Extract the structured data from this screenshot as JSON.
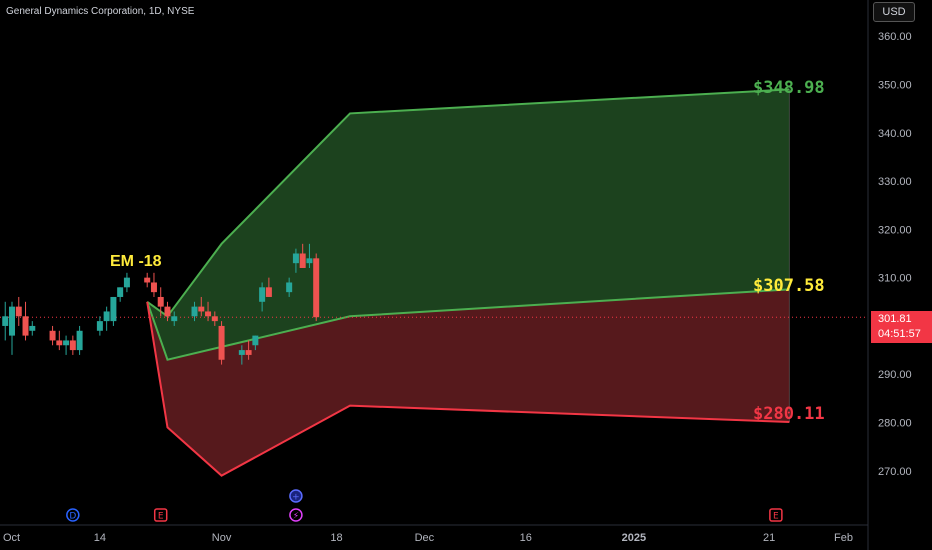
{
  "header": {
    "title": "General Dynamics Corporation, 1D, NYSE",
    "currency": "USD"
  },
  "last_price": {
    "value": "301.81",
    "countdown": "04:51:57"
  },
  "em_label": "EM -18",
  "levels": {
    "upper": "$348.98",
    "mid": "$307.58",
    "lower": "$280.11"
  },
  "colors": {
    "up": "#26a69a",
    "down": "#ef5350",
    "green_zone": "#1e4620",
    "red_zone": "#5b1a1e",
    "green_line": "#4caf50",
    "red_line": "#f23645",
    "mid_label": "#ffeb3b"
  },
  "x_axis": {
    "ticks": [
      "Oct",
      "14",
      "Nov",
      "18",
      "Dec",
      "16",
      "2025",
      "21",
      "Feb"
    ]
  },
  "y_axis": {
    "ticks": [
      "360.00",
      "350.00",
      "340.00",
      "330.00",
      "320.00",
      "310.00",
      "290.00",
      "280.00",
      "270.00"
    ]
  },
  "event_markers": [
    {
      "label": "D",
      "date": "Oct 10"
    },
    {
      "label": "E",
      "date": "Oct 23"
    },
    {
      "label": "+",
      "date": "Nov 12"
    },
    {
      "label": "⚡",
      "date": "Nov 12"
    },
    {
      "label": "E",
      "date": "Jan 22"
    }
  ],
  "chart_data": {
    "type": "candlestick",
    "title": "General Dynamics Corporation, 1D, NYSE",
    "ylim": [
      262,
      363
    ],
    "candles": [
      {
        "date": "Sep 30",
        "o": 300,
        "h": 305,
        "l": 297,
        "c": 302
      },
      {
        "date": "Oct 1",
        "o": 298,
        "h": 305,
        "l": 294,
        "c": 304
      },
      {
        "date": "Oct 2",
        "o": 304,
        "h": 306,
        "l": 300,
        "c": 302
      },
      {
        "date": "Oct 3",
        "o": 302,
        "h": 305,
        "l": 297,
        "c": 298
      },
      {
        "date": "Oct 4",
        "o": 299,
        "h": 301,
        "l": 298,
        "c": 300
      },
      {
        "date": "Oct 7",
        "o": 299,
        "h": 300,
        "l": 296,
        "c": 297
      },
      {
        "date": "Oct 8",
        "o": 297,
        "h": 299,
        "l": 295,
        "c": 296
      },
      {
        "date": "Oct 9",
        "o": 296,
        "h": 298,
        "l": 294,
        "c": 297
      },
      {
        "date": "Oct 10",
        "o": 297,
        "h": 298,
        "l": 294,
        "c": 295
      },
      {
        "date": "Oct 11",
        "o": 295,
        "h": 300,
        "l": 294,
        "c": 299
      },
      {
        "date": "Oct 14",
        "o": 299,
        "h": 302,
        "l": 298,
        "c": 301
      },
      {
        "date": "Oct 15",
        "o": 301,
        "h": 304,
        "l": 299,
        "c": 303
      },
      {
        "date": "Oct 16",
        "o": 301,
        "h": 306,
        "l": 300,
        "c": 306
      },
      {
        "date": "Oct 17",
        "o": 306,
        "h": 308,
        "l": 305,
        "c": 308
      },
      {
        "date": "Oct 18",
        "o": 308,
        "h": 311,
        "l": 307,
        "c": 310
      },
      {
        "date": "Oct 21",
        "o": 310,
        "h": 311,
        "l": 308,
        "c": 309
      },
      {
        "date": "Oct 22",
        "o": 309,
        "h": 311,
        "l": 306,
        "c": 307
      },
      {
        "date": "Oct 23",
        "o": 306,
        "h": 308,
        "l": 302,
        "c": 304
      },
      {
        "date": "Oct 24",
        "o": 304,
        "h": 305,
        "l": 301,
        "c": 302
      },
      {
        "date": "Oct 25",
        "o": 301,
        "h": 303,
        "l": 300,
        "c": 302
      },
      {
        "date": "Oct 28",
        "o": 302,
        "h": 305,
        "l": 301,
        "c": 304
      },
      {
        "date": "Oct 29",
        "o": 304,
        "h": 306,
        "l": 302,
        "c": 303
      },
      {
        "date": "Oct 30",
        "o": 303,
        "h": 305,
        "l": 301,
        "c": 302
      },
      {
        "date": "Oct 31",
        "o": 302,
        "h": 303,
        "l": 300,
        "c": 301
      },
      {
        "date": "Nov 1",
        "o": 300,
        "h": 301,
        "l": 292,
        "c": 293
      },
      {
        "date": "Nov 4",
        "o": 294,
        "h": 296,
        "l": 292,
        "c": 295
      },
      {
        "date": "Nov 5",
        "o": 295,
        "h": 297,
        "l": 293,
        "c": 294
      },
      {
        "date": "Nov 6",
        "o": 296,
        "h": 298,
        "l": 295,
        "c": 298
      },
      {
        "date": "Nov 7",
        "o": 305,
        "h": 309,
        "l": 303,
        "c": 308
      },
      {
        "date": "Nov 8",
        "o": 308,
        "h": 310,
        "l": 306,
        "c": 306
      },
      {
        "date": "Nov 11",
        "o": 307,
        "h": 310,
        "l": 306,
        "c": 309
      },
      {
        "date": "Nov 12",
        "o": 313,
        "h": 316,
        "l": 311,
        "c": 315
      },
      {
        "date": "Nov 13",
        "o": 315,
        "h": 317,
        "l": 313,
        "c": 312
      },
      {
        "date": "Nov 14",
        "o": 313,
        "h": 317,
        "l": 312,
        "c": 314
      },
      {
        "date": "Nov 15",
        "o": 314,
        "h": 315,
        "l": 301,
        "c": 301.81
      }
    ],
    "expected_move": {
      "start": {
        "date": "Oct 21",
        "price": 305
      },
      "upper": [
        {
          "date": "Oct 21",
          "price": 305
        },
        {
          "date": "Oct 24",
          "price": 302
        },
        {
          "date": "Nov 1",
          "price": 317
        },
        {
          "date": "Nov 20",
          "price": 344
        },
        {
          "date": "Jan 24",
          "price": 348.98
        }
      ],
      "mid": [
        {
          "date": "Oct 21",
          "price": 305
        },
        {
          "date": "Oct 24",
          "price": 293
        },
        {
          "date": "Nov 20",
          "price": 302
        },
        {
          "date": "Jan 24",
          "price": 307.58
        }
      ],
      "lower": [
        {
          "date": "Oct 21",
          "price": 305
        },
        {
          "date": "Oct 24",
          "price": 279
        },
        {
          "date": "Nov 1",
          "price": 269
        },
        {
          "date": "Nov 20",
          "price": 283.5
        },
        {
          "date": "Jan 24",
          "price": 280.11
        }
      ]
    }
  }
}
